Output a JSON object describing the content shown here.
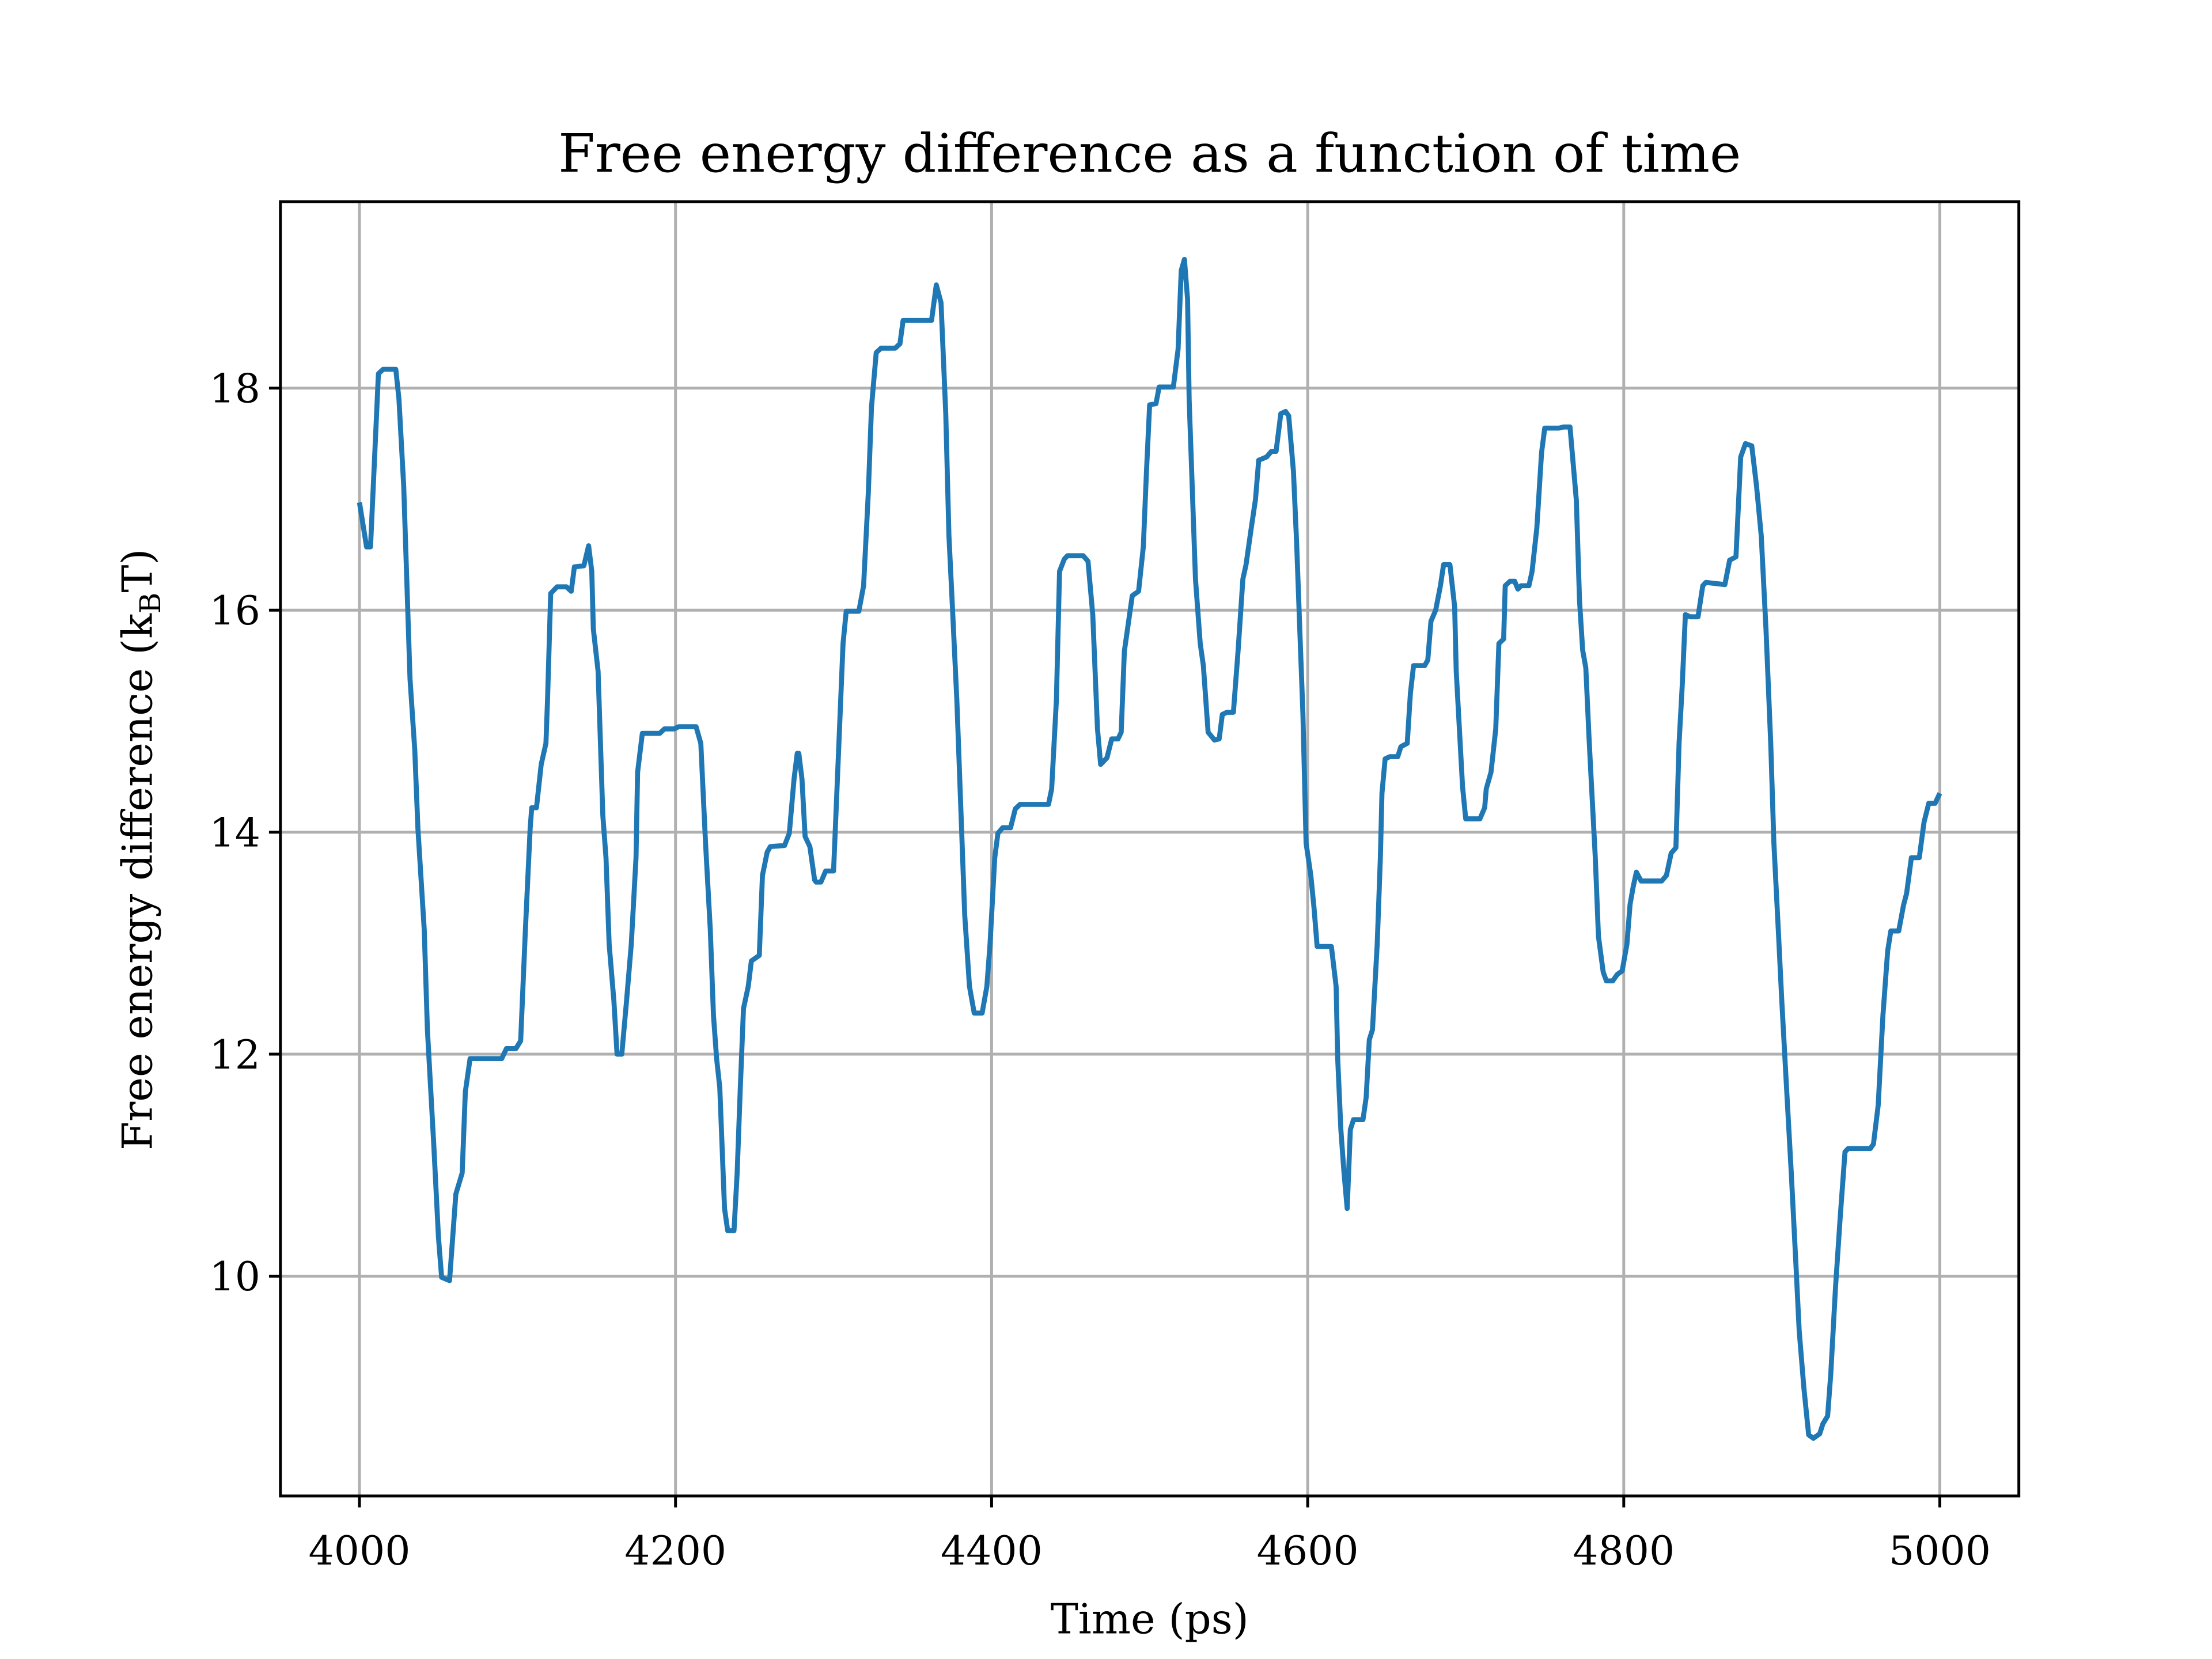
{
  "chart_data": {
    "type": "line",
    "title": "Free energy difference as a function of time",
    "xlabel": "Time (ps)",
    "ylabel": [
      "Free energy difference (k",
      "B",
      "T)"
    ],
    "xlim": [
      3950,
      5050
    ],
    "ylim": [
      8.02,
      19.68
    ],
    "xticks": [
      4000,
      4200,
      4400,
      4600,
      4800,
      5000
    ],
    "yticks": [
      10,
      12,
      14,
      16,
      18
    ],
    "grid": true,
    "color": "#1f77b4",
    "x": [
      4000,
      4004.5,
      4007,
      4012,
      4015,
      4023,
      4025,
      4028,
      4032,
      4035,
      4037,
      4041,
      4043,
      4047,
      4050,
      4052,
      4057,
      4061,
      4065,
      4067,
      4070,
      4090,
      4093,
      4099,
      4102,
      4105,
      4108,
      4109,
      4112,
      4115,
      4118,
      4119,
      4121,
      4125,
      4131,
      4134,
      4136,
      4142,
      4145,
      4147,
      4148,
      4151,
      4154,
      4156,
      4158,
      4161,
      4163,
      4166,
      4169,
      4172,
      4175,
      4176,
      4179,
      4190,
      4193,
      4199,
      4202,
      4213,
      4216,
      4219,
      4222,
      4224,
      4226,
      4228,
      4231,
      4233,
      4237,
      4239,
      4241,
      4243,
      4246,
      4248,
      4253,
      4255,
      4258,
      4260,
      4269,
      4272,
      4275,
      4277,
      4278,
      4280,
      4282,
      4285,
      4288,
      4289,
      4292,
      4295,
      4300,
      4303,
      4306,
      4308,
      4316,
      4319,
      4322,
      4324,
      4327,
      4330,
      4339,
      4342,
      4344,
      4362,
      4365,
      4368,
      4371,
      4373,
      4375,
      4378,
      4381,
      4383,
      4386,
      4389,
      4394,
      4397,
      4399,
      4402,
      4404,
      4407,
      4412,
      4415,
      4418,
      4436,
      4438,
      4441,
      4443,
      4446,
      4448,
      4458,
      4461,
      4464,
      4467,
      4469,
      4473,
      4476,
      4480,
      4482,
      4484,
      4486,
      4489,
      4493,
      4496,
      4498,
      4500,
      4504,
      4506,
      4515,
      4518,
      4520,
      4522,
      4524,
      4525,
      4529,
      4532,
      4534,
      4537,
      4541,
      4544,
      4546,
      4549,
      4553,
      4556,
      4559,
      4561,
      4564,
      4567,
      4569,
      4574,
      4577,
      4580,
      4583,
      4586,
      4588,
      4591,
      4593,
      4595,
      4597,
      4599,
      4602,
      4604,
      4606,
      4615,
      4618,
      4619,
      4621,
      4623,
      4625,
      4627,
      4629,
      4635,
      4637,
      4639,
      4641,
      4644,
      4646,
      4647,
      4649,
      4652,
      4657,
      4659,
      4663,
      4665,
      4667,
      4674,
      4676,
      4678,
      4681,
      4684,
      4686,
      4690,
      4693,
      4694,
      4696,
      4698,
      4700,
      4709,
      4712,
      4713,
      4716,
      4719,
      4721,
      4724,
      4725,
      4728,
      4731,
      4733,
      4735,
      4740,
      4742,
      4745,
      4748,
      4750,
      4759,
      4762,
      4766,
      4770,
      4772,
      4774,
      4776,
      4778,
      4779,
      4782,
      4784,
      4787,
      4789,
      4793,
      4796,
      4799,
      4802,
      4804,
      4806,
      4808,
      4811,
      4824,
      4827,
      4830,
      4833,
      4835,
      4837,
      4839,
      4842,
      4847,
      4850,
      4852,
      4864,
      4867,
      4871,
      4874,
      4877,
      4881,
      4884,
      4887,
      4890,
      4893,
      4895,
      4898,
      4900,
      4903,
      4906,
      4909,
      4911,
      4914,
      4917,
      4920,
      4924,
      4926,
      4929,
      4931,
      4934,
      4937,
      4940,
      4942,
      4956,
      4958,
      4961,
      4964,
      4967,
      4969,
      4974,
      4977,
      4979,
      4982,
      4987,
      4990,
      4993,
      4997,
      5000
    ],
    "values": [
      16.97,
      16.57,
      16.57,
      18.13,
      18.17,
      18.17,
      17.9,
      17.12,
      15.38,
      14.74,
      14.03,
      13.12,
      12.22,
      11.19,
      10.35,
      9.99,
      9.96,
      10.74,
      10.93,
      11.66,
      11.96,
      11.96,
      12.05,
      12.05,
      12.12,
      13.12,
      14.03,
      14.22,
      14.22,
      14.61,
      14.8,
      15.19,
      16.15,
      16.21,
      16.21,
      16.17,
      16.39,
      16.4,
      16.58,
      16.35,
      15.83,
      15.45,
      14.15,
      13.77,
      12.99,
      12.48,
      12.0,
      12.0,
      12.48,
      12.99,
      13.77,
      14.54,
      14.89,
      14.89,
      14.93,
      14.93,
      14.95,
      14.95,
      14.8,
      13.9,
      13.12,
      12.35,
      11.96,
      11.7,
      10.61,
      10.41,
      10.41,
      10.93,
      11.7,
      12.41,
      12.61,
      12.84,
      12.89,
      13.61,
      13.82,
      13.87,
      13.88,
      13.99,
      14.48,
      14.71,
      14.71,
      14.48,
      13.96,
      13.87,
      13.57,
      13.55,
      13.55,
      13.65,
      13.65,
      14.67,
      15.7,
      15.99,
      15.99,
      16.22,
      17.06,
      17.83,
      18.32,
      18.36,
      18.36,
      18.4,
      18.61,
      18.61,
      18.93,
      18.77,
      17.77,
      16.67,
      16.09,
      15.19,
      14.03,
      13.25,
      12.61,
      12.37,
      12.37,
      12.61,
      12.99,
      13.77,
      13.99,
      14.04,
      14.04,
      14.21,
      14.25,
      14.25,
      14.39,
      15.19,
      16.35,
      16.46,
      16.49,
      16.49,
      16.44,
      15.96,
      14.93,
      14.61,
      14.67,
      14.84,
      14.84,
      14.9,
      15.63,
      15.83,
      16.13,
      16.17,
      16.57,
      17.25,
      17.85,
      17.86,
      18.01,
      18.01,
      18.35,
      19.06,
      19.16,
      18.8,
      17.9,
      16.28,
      15.7,
      15.5,
      14.9,
      14.83,
      14.84,
      15.06,
      15.08,
      15.08,
      15.64,
      16.28,
      16.41,
      16.71,
      17.0,
      17.35,
      17.38,
      17.43,
      17.43,
      17.77,
      17.79,
      17.75,
      17.25,
      16.61,
      15.83,
      15.06,
      13.9,
      13.61,
      13.32,
      12.97,
      12.97,
      12.61,
      11.96,
      11.32,
      10.93,
      10.61,
      11.32,
      11.41,
      11.41,
      11.61,
      12.13,
      12.22,
      12.99,
      13.77,
      14.35,
      14.66,
      14.68,
      14.68,
      14.77,
      14.8,
      15.25,
      15.5,
      15.5,
      15.55,
      15.9,
      16.0,
      16.22,
      16.41,
      16.41,
      16.03,
      15.45,
      14.93,
      14.41,
      14.12,
      14.12,
      14.22,
      14.39,
      14.54,
      14.93,
      15.7,
      15.74,
      16.22,
      16.26,
      16.26,
      16.19,
      16.22,
      16.22,
      16.35,
      16.74,
      17.42,
      17.64,
      17.64,
      17.65,
      17.65,
      16.99,
      16.09,
      15.64,
      15.48,
      14.86,
      14.58,
      13.77,
      13.06,
      12.74,
      12.66,
      12.66,
      12.72,
      12.75,
      12.99,
      13.35,
      13.51,
      13.64,
      13.56,
      13.56,
      13.61,
      13.81,
      13.86,
      14.8,
      15.32,
      15.96,
      15.94,
      15.94,
      16.22,
      16.25,
      16.23,
      16.45,
      16.48,
      17.38,
      17.5,
      17.48,
      17.12,
      16.67,
      15.83,
      14.8,
      13.9,
      13.06,
      12.48,
      11.7,
      10.93,
      10.09,
      9.51,
      8.99,
      8.57,
      8.54,
      8.58,
      8.67,
      8.74,
      9.12,
      9.9,
      10.54,
      11.12,
      11.15,
      11.15,
      11.19,
      11.54,
      12.35,
      12.93,
      13.11,
      13.11,
      13.34,
      13.45,
      13.77,
      13.77,
      14.09,
      14.26,
      14.26,
      14.35
    ]
  }
}
